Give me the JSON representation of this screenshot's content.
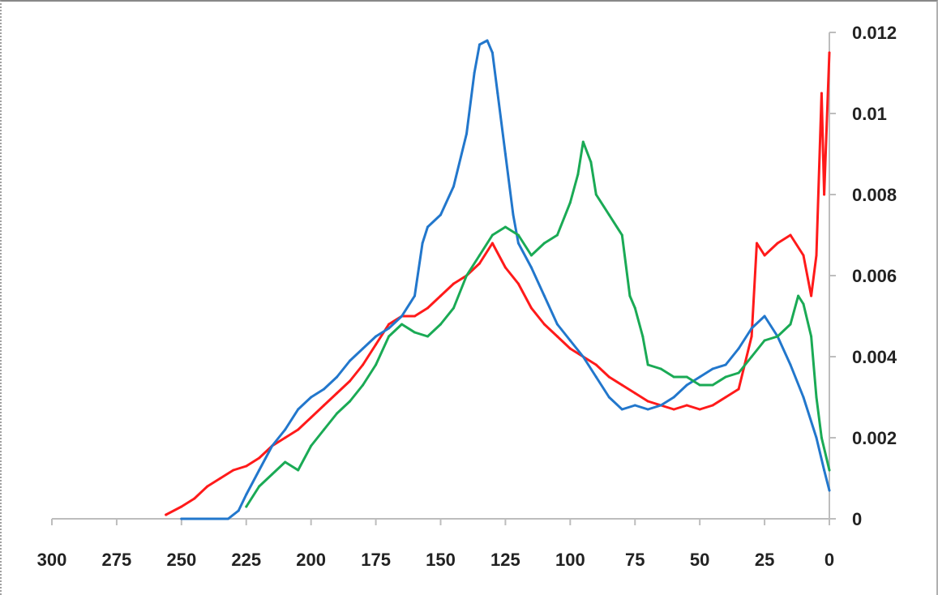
{
  "chart_data": {
    "type": "line",
    "title": "",
    "xlabel": "",
    "ylabel": "",
    "x_reversed": true,
    "xlim": [
      300,
      0
    ],
    "ylim": [
      0,
      0.012
    ],
    "x_ticks": [
      "300",
      "275",
      "250",
      "225",
      "200",
      "175",
      "150",
      "125",
      "100",
      "75",
      "50",
      "25",
      "0"
    ],
    "y_ticks": [
      "0",
      "0.002",
      "0.004",
      "0.006",
      "0.008",
      "0.01",
      "0.012"
    ],
    "y_axis_position": "right",
    "grid": false,
    "legend": "none",
    "series": [
      {
        "color": "#ff1a1a",
        "x": [
          256,
          250,
          245,
          240,
          235,
          230,
          225,
          220,
          215,
          210,
          205,
          200,
          195,
          190,
          185,
          180,
          175,
          170,
          165,
          160,
          155,
          150,
          145,
          140,
          135,
          130,
          125,
          120,
          115,
          110,
          105,
          100,
          95,
          90,
          85,
          80,
          75,
          70,
          65,
          60,
          55,
          50,
          45,
          40,
          35,
          30,
          28,
          25,
          20,
          15,
          10,
          7,
          5,
          3,
          2,
          0
        ],
        "y": [
          0.0001,
          0.0003,
          0.0005,
          0.0008,
          0.001,
          0.0012,
          0.0013,
          0.0015,
          0.0018,
          0.002,
          0.0022,
          0.0025,
          0.0028,
          0.0031,
          0.0034,
          0.0038,
          0.0043,
          0.0048,
          0.005,
          0.005,
          0.0052,
          0.0055,
          0.0058,
          0.006,
          0.0063,
          0.0068,
          0.0062,
          0.0058,
          0.0052,
          0.0048,
          0.0045,
          0.0042,
          0.004,
          0.0038,
          0.0035,
          0.0033,
          0.0031,
          0.0029,
          0.0028,
          0.0027,
          0.0028,
          0.0027,
          0.0028,
          0.003,
          0.0032,
          0.0045,
          0.0068,
          0.0065,
          0.0068,
          0.007,
          0.0065,
          0.0055,
          0.0065,
          0.0105,
          0.008,
          0.0115
        ]
      },
      {
        "color": "#2277cc",
        "x": [
          250,
          240,
          232,
          228,
          225,
          220,
          215,
          210,
          205,
          200,
          195,
          190,
          185,
          180,
          175,
          170,
          165,
          160,
          157,
          155,
          150,
          145,
          140,
          137,
          135,
          132,
          130,
          128,
          125,
          122,
          120,
          115,
          110,
          105,
          100,
          95,
          90,
          85,
          80,
          75,
          70,
          65,
          60,
          55,
          50,
          45,
          40,
          35,
          30,
          25,
          20,
          15,
          10,
          5,
          2,
          0
        ],
        "y": [
          0,
          0,
          0,
          0.0002,
          0.0006,
          0.0012,
          0.0018,
          0.0022,
          0.0027,
          0.003,
          0.0032,
          0.0035,
          0.0039,
          0.0042,
          0.0045,
          0.0047,
          0.005,
          0.0055,
          0.0068,
          0.0072,
          0.0075,
          0.0082,
          0.0095,
          0.011,
          0.0117,
          0.0118,
          0.0115,
          0.0105,
          0.009,
          0.0075,
          0.0068,
          0.0062,
          0.0055,
          0.0048,
          0.0044,
          0.004,
          0.0035,
          0.003,
          0.0027,
          0.0028,
          0.0027,
          0.0028,
          0.003,
          0.0033,
          0.0035,
          0.0037,
          0.0038,
          0.0042,
          0.0047,
          0.005,
          0.0045,
          0.0038,
          0.003,
          0.002,
          0.0012,
          0.0007
        ]
      },
      {
        "color": "#1aaa55",
        "x": [
          225,
          220,
          215,
          210,
          205,
          200,
          195,
          190,
          185,
          180,
          175,
          170,
          165,
          160,
          155,
          150,
          145,
          140,
          135,
          130,
          125,
          120,
          115,
          110,
          105,
          100,
          97,
          95,
          92,
          90,
          85,
          80,
          77,
          75,
          72,
          70,
          65,
          60,
          55,
          50,
          45,
          40,
          35,
          30,
          25,
          20,
          15,
          12,
          10,
          7,
          5,
          3,
          0
        ],
        "y": [
          0.0003,
          0.0008,
          0.0011,
          0.0014,
          0.0012,
          0.0018,
          0.0022,
          0.0026,
          0.0029,
          0.0033,
          0.0038,
          0.0045,
          0.0048,
          0.0046,
          0.0045,
          0.0048,
          0.0052,
          0.006,
          0.0065,
          0.007,
          0.0072,
          0.007,
          0.0065,
          0.0068,
          0.007,
          0.0078,
          0.0085,
          0.0093,
          0.0088,
          0.008,
          0.0075,
          0.007,
          0.0055,
          0.0052,
          0.0045,
          0.0038,
          0.0037,
          0.0035,
          0.0035,
          0.0033,
          0.0033,
          0.0035,
          0.0036,
          0.004,
          0.0044,
          0.0045,
          0.0048,
          0.0055,
          0.0053,
          0.0045,
          0.003,
          0.002,
          0.0012
        ]
      }
    ]
  }
}
